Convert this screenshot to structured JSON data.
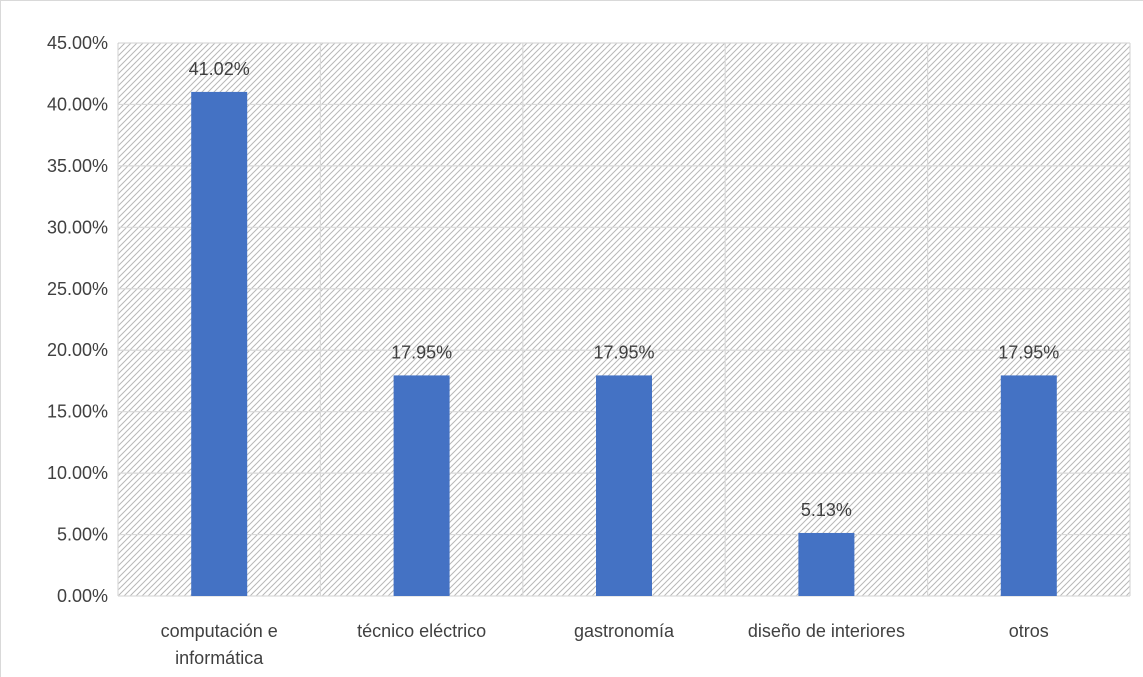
{
  "chart_data": {
    "type": "bar",
    "categories": [
      [
        "computación e",
        "informática"
      ],
      [
        "técnico eléctrico"
      ],
      [
        "gastronomía"
      ],
      [
        "diseño de interiores"
      ],
      [
        "otros"
      ]
    ],
    "values": [
      41.02,
      17.95,
      17.95,
      5.13,
      17.95
    ],
    "data_labels": [
      "41.02%",
      "17.95%",
      "17.95%",
      "5.13%",
      "17.95%"
    ],
    "yticks": [
      0,
      5,
      10,
      15,
      20,
      25,
      30,
      35,
      40,
      45
    ],
    "ytick_labels": [
      "0.00%",
      "5.00%",
      "10.00%",
      "15.00%",
      "20.00%",
      "25.00%",
      "30.00%",
      "35.00%",
      "40.00%",
      "45.00%"
    ],
    "ylim": [
      0,
      45
    ],
    "grid": true,
    "legend": "none",
    "title": "",
    "xlabel": "",
    "ylabel": "",
    "colors": {
      "bar": "#4472C4",
      "grid": "#D9D9D9",
      "hatch": "#B8B8B8",
      "axis_text": "#404040",
      "frame_border": "#D9D9D9"
    }
  }
}
